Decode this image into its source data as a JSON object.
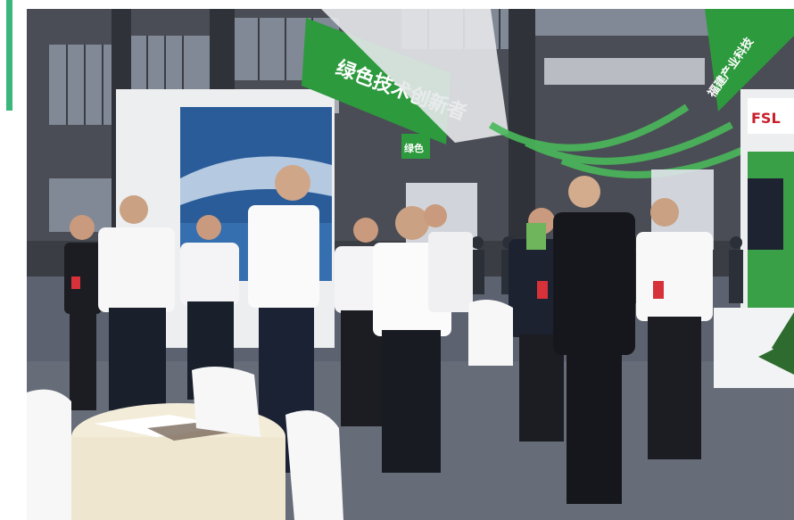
{
  "colors": {
    "accent": "#3bb77e",
    "sign_green": "#2e9a3e",
    "booth_green": "#3aa047",
    "floor": "#5d6270",
    "ceiling": "#4a4d55"
  },
  "photo": {
    "signs": {
      "main_sign": "绿色技术创新者",
      "small_sign": "绿色",
      "side_sign": "福建产业科技",
      "booth_logo": "FSL"
    }
  }
}
